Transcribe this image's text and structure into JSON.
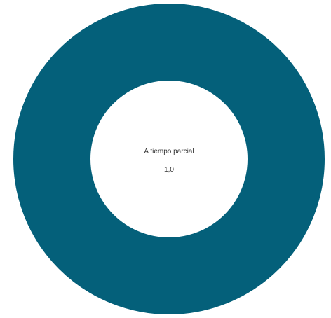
{
  "chart_data": {
    "type": "pie",
    "variant": "donut",
    "slices": [
      {
        "label": "A tiempo parcial",
        "value": 1.0,
        "color": "#04607a"
      }
    ],
    "center_label": "A tiempo parcial",
    "center_value": "1,0",
    "legend": "none"
  }
}
